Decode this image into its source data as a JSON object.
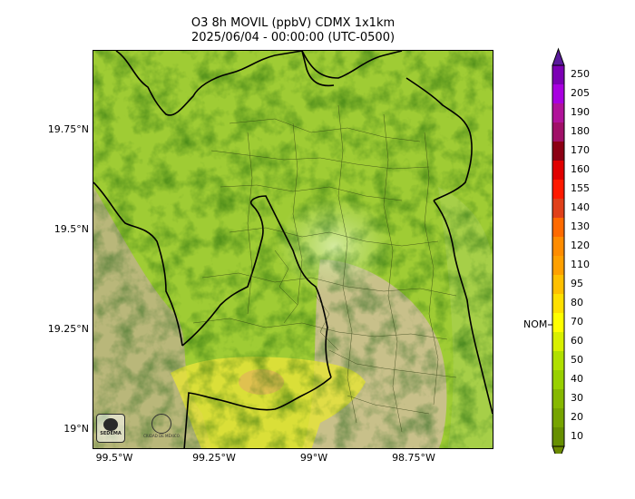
{
  "title": {
    "line1": "O3 8h MOVIL (ppbV) CDMX 1x1km",
    "line2": "2025/06/04 - 00:00:00 (UTC-0500)"
  },
  "map": {
    "lat_ticks": [
      "19.75°N",
      "19.5°N",
      "19.25°N",
      "19°N"
    ],
    "lon_ticks": [
      "99.5°W",
      "99.25°W",
      "99°W",
      "98.75°W"
    ],
    "logos": [
      "SEDEMA",
      "CIUDAD DE MÉXICO"
    ]
  },
  "colorbar": {
    "labels": [
      "250",
      "205",
      "190",
      "180",
      "170",
      "160",
      "155",
      "140",
      "130",
      "120",
      "110",
      "95",
      "80",
      "70",
      "60",
      "50",
      "40",
      "30",
      "20",
      "10"
    ],
    "colors": [
      "#7c00b4",
      "#a800e0",
      "#b0139a",
      "#a01068",
      "#8c0014",
      "#e00000",
      "#ff1a00",
      "#e0401a",
      "#ff6a00",
      "#ff8c00",
      "#ffa000",
      "#ffc000",
      "#ffe000",
      "#ffff00",
      "#d8f000",
      "#b0e000",
      "#98d000",
      "#86b800",
      "#76a400",
      "#668f00"
    ],
    "top_arrow_color": "#5a1a9c",
    "bottom_arrow_color": "#6b8a00",
    "nom_label": "NOM"
  }
}
